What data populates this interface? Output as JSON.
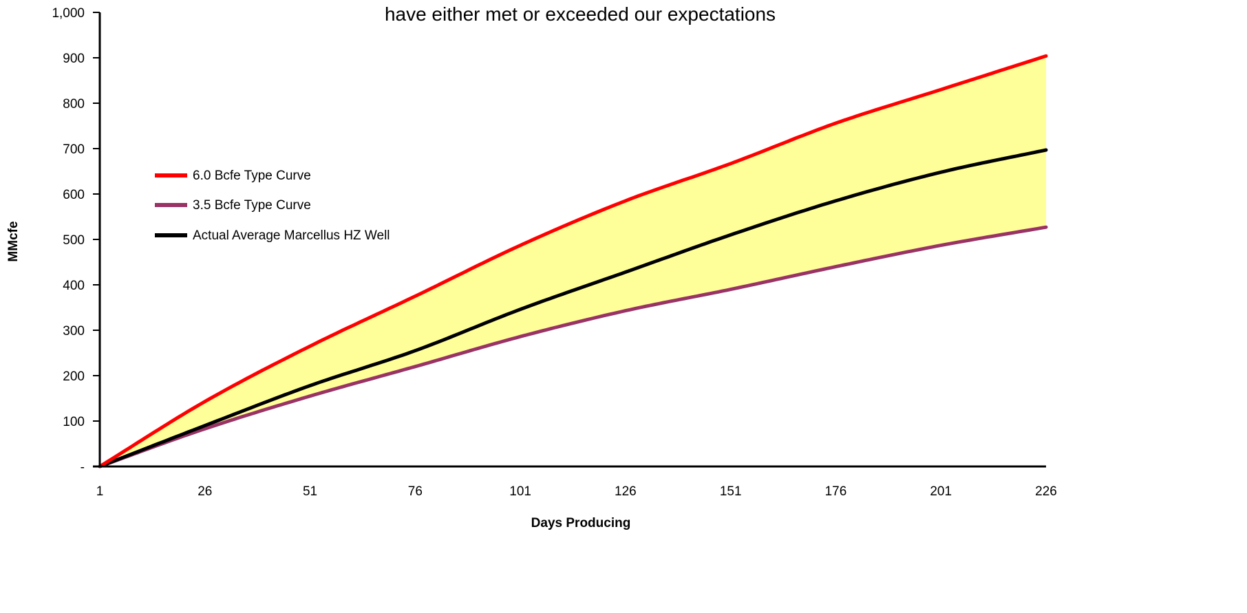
{
  "chart_data": {
    "type": "line",
    "title": "have either met or exceeded our expectations",
    "xlabel": "Days Producing",
    "ylabel": "MMcfe",
    "xlim": [
      1,
      226
    ],
    "ylim": [
      0,
      1000
    ],
    "x_ticks": [
      1,
      26,
      51,
      76,
      101,
      126,
      151,
      176,
      201,
      226
    ],
    "y_tick_labels": [
      "-",
      "100",
      "200",
      "300",
      "400",
      "500",
      "600",
      "700",
      "800",
      "900",
      "1,000"
    ],
    "y_tick_values": [
      0,
      100,
      200,
      300,
      400,
      500,
      600,
      700,
      800,
      900,
      1000
    ],
    "grid": false,
    "legend_position": "left-middle",
    "shaded_band": {
      "between": [
        "6.0 Bcfe Type Curve",
        "3.5 Bcfe Type Curve"
      ],
      "color": "#ffff99"
    },
    "x": [
      1,
      26,
      51,
      76,
      101,
      126,
      151,
      176,
      201,
      226
    ],
    "series": [
      {
        "name": "6.0 Bcfe Type Curve",
        "color": "#ff0000",
        "values": [
          0,
          143,
          265,
          375,
          487,
          585,
          667,
          756,
          830,
          904
        ]
      },
      {
        "name": "3.5 Bcfe Type Curve",
        "color": "#993366",
        "values": [
          0,
          83,
          155,
          220,
          286,
          343,
          390,
          440,
          487,
          527
        ]
      },
      {
        "name": "Actual Average Marcellus HZ Well",
        "color": "#000000",
        "values": [
          0,
          90,
          178,
          255,
          346,
          428,
          510,
          585,
          648,
          697
        ]
      }
    ]
  }
}
